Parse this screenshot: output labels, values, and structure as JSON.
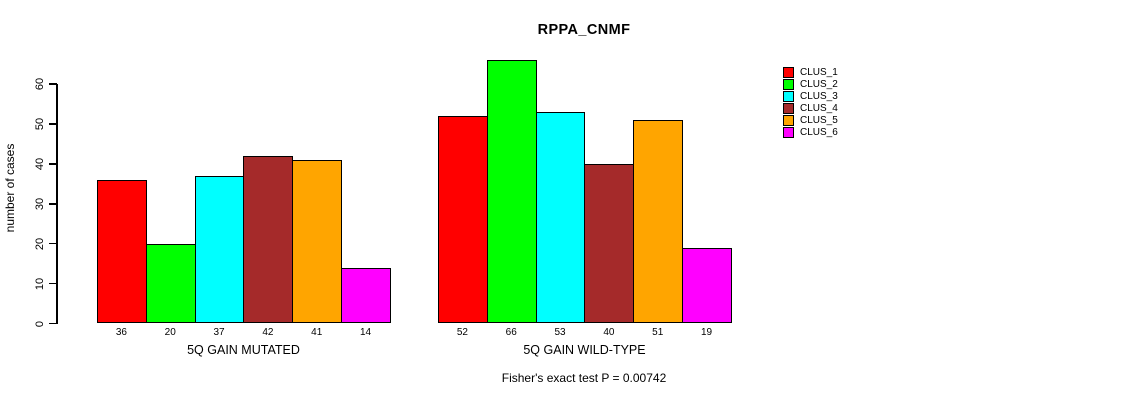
{
  "title": "RPPA_CNMF",
  "ylabel": "number of cases",
  "footnote": "Fisher's exact test P = 0.00742",
  "chart_data": {
    "type": "bar",
    "title": "RPPA_CNMF",
    "xlabel": "",
    "ylabel": "number of cases",
    "ylim": [
      0,
      60
    ],
    "yticks": [
      0,
      10,
      20,
      30,
      40,
      50,
      60
    ],
    "grid": false,
    "legend_position": "right",
    "categories": [
      "5Q GAIN MUTATED",
      "5Q GAIN WILD-TYPE"
    ],
    "groups": [
      {
        "label": "5Q GAIN MUTATED",
        "values": [
          36,
          20,
          37,
          42,
          41,
          14
        ]
      },
      {
        "label": "5Q GAIN WILD-TYPE",
        "values": [
          52,
          66,
          53,
          40,
          51,
          19
        ]
      }
    ],
    "series": [
      {
        "name": "CLUS_1",
        "color": "#FF0000",
        "values": [
          36,
          52
        ]
      },
      {
        "name": "CLUS_2",
        "color": "#00FF00",
        "values": [
          20,
          66
        ]
      },
      {
        "name": "CLUS_3",
        "color": "#00FFFF",
        "values": [
          37,
          53
        ]
      },
      {
        "name": "CLUS_4",
        "color": "#A52A2A",
        "values": [
          42,
          40
        ]
      },
      {
        "name": "CLUS_5",
        "color": "#FFA500",
        "values": [
          41,
          51
        ]
      },
      {
        "name": "CLUS_6",
        "color": "#FF00FF",
        "values": [
          14,
          19
        ]
      }
    ],
    "annotation": "Fisher's exact test P = 0.00742"
  }
}
